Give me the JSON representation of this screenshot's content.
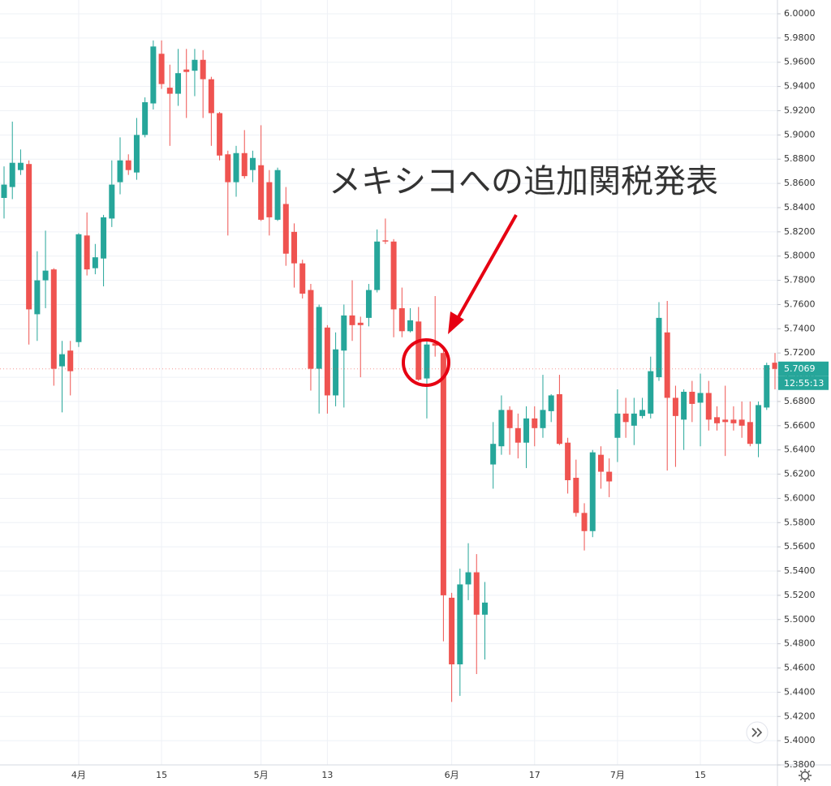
{
  "chart_data": {
    "type": "candlestick",
    "annotation": "メキシコへの追加関税発表",
    "annotation_color": "#e60012",
    "up_color": "#26a69a",
    "down_color": "#ef5350",
    "grid": true,
    "ylim": [
      5.38,
      6.0
    ],
    "yticks": [
      {
        "value": 5.38,
        "label": "5.3800"
      },
      {
        "value": 5.4,
        "label": "5.4000"
      },
      {
        "value": 5.42,
        "label": "5.4200"
      },
      {
        "value": 5.44,
        "label": "5.4400"
      },
      {
        "value": 5.46,
        "label": "5.4600"
      },
      {
        "value": 5.48,
        "label": "5.4800"
      },
      {
        "value": 5.5,
        "label": "5.5000"
      },
      {
        "value": 5.52,
        "label": "5.5200"
      },
      {
        "value": 5.54,
        "label": "5.5400"
      },
      {
        "value": 5.56,
        "label": "5.5600"
      },
      {
        "value": 5.58,
        "label": "5.5800"
      },
      {
        "value": 5.6,
        "label": "5.6000"
      },
      {
        "value": 5.62,
        "label": "5.6200"
      },
      {
        "value": 5.64,
        "label": "5.6400"
      },
      {
        "value": 5.66,
        "label": "5.6600"
      },
      {
        "value": 5.68,
        "label": "5.6800"
      },
      {
        "value": 5.7,
        "label": "5.7000"
      },
      {
        "value": 5.72,
        "label": "5.7200"
      },
      {
        "value": 5.74,
        "label": "5.7400"
      },
      {
        "value": 5.76,
        "label": "5.7600"
      },
      {
        "value": 5.78,
        "label": "5.7800"
      },
      {
        "value": 5.8,
        "label": "5.8000"
      },
      {
        "value": 5.82,
        "label": "5.8200"
      },
      {
        "value": 5.84,
        "label": "5.8400"
      },
      {
        "value": 5.86,
        "label": "5.8600"
      },
      {
        "value": 5.88,
        "label": "5.8800"
      },
      {
        "value": 5.9,
        "label": "5.9000"
      },
      {
        "value": 5.92,
        "label": "5.9200"
      },
      {
        "value": 5.94,
        "label": "5.9400"
      },
      {
        "value": 5.96,
        "label": "5.9600"
      },
      {
        "value": 5.98,
        "label": "5.9800"
      },
      {
        "value": 6.0,
        "label": "6.0000"
      }
    ],
    "last_price": 5.7069,
    "countdown": "12:55:13",
    "categories": [
      null,
      null,
      null,
      null,
      null,
      null,
      null,
      null,
      null,
      "4月",
      null,
      null,
      null,
      null,
      null,
      null,
      null,
      null,
      null,
      "15",
      null,
      null,
      null,
      null,
      null,
      null,
      null,
      null,
      null,
      null,
      null,
      "5月",
      null,
      null,
      null,
      null,
      null,
      null,
      null,
      "13",
      null,
      null,
      null,
      null,
      null,
      null,
      null,
      null,
      null,
      null,
      null,
      null,
      null,
      null,
      "6月",
      null,
      null,
      null,
      null,
      null,
      null,
      null,
      null,
      null,
      "17",
      null,
      null,
      null,
      null,
      null,
      null,
      null,
      null,
      null,
      "7月",
      null,
      null,
      null,
      null,
      null,
      null,
      null,
      null,
      null,
      "15",
      null,
      null,
      null,
      null,
      null,
      null,
      null,
      null,
      null
    ],
    "open": [
      5.848,
      5.857,
      5.871,
      5.876,
      5.752,
      5.78,
      5.789,
      5.709,
      5.722,
      5.729,
      5.817,
      5.79,
      5.798,
      5.831,
      5.861,
      5.879,
      5.869,
      5.9,
      5.926,
      5.967,
      5.939,
      5.934,
      5.954,
      5.953,
      5.962,
      5.946,
      5.918,
      5.884,
      5.861,
      5.885,
      5.871,
      5.875,
      5.861,
      5.83,
      5.843,
      5.82,
      5.794,
      5.772,
      5.707,
      5.741,
      5.685,
      5.722,
      5.751,
      5.745,
      5.749,
      5.772,
      5.813,
      5.812,
      5.757,
      5.738,
      5.746,
      5.699,
      5.728,
      5.72,
      5.518,
      5.463,
      5.529,
      5.539,
      5.504,
      5.628,
      5.643,
      5.673,
      5.658,
      5.646,
      5.666,
      5.658,
      5.672,
      5.686,
      5.646,
      5.617,
      5.588,
      5.573,
      5.636,
      5.622,
      5.65,
      5.67,
      5.66,
      5.668,
      5.67,
      5.7,
      5.737,
      5.683,
      5.665,
      5.688,
      5.679,
      5.687,
      5.667,
      5.665,
      5.665,
      5.665,
      5.663,
      5.645,
      5.675,
      5.712
    ],
    "high": [
      5.874,
      5.911,
      5.888,
      5.879,
      5.804,
      5.821,
      5.79,
      5.73,
      5.73,
      5.819,
      5.836,
      5.81,
      5.834,
      5.879,
      5.898,
      5.884,
      5.914,
      5.931,
      5.978,
      5.978,
      5.958,
      5.971,
      5.971,
      5.971,
      5.97,
      5.948,
      5.919,
      5.887,
      5.891,
      5.904,
      5.887,
      5.908,
      5.871,
      5.873,
      5.857,
      5.827,
      5.797,
      5.777,
      5.76,
      5.743,
      5.737,
      5.76,
      5.78,
      5.75,
      5.777,
      5.822,
      5.831,
      5.814,
      5.774,
      5.757,
      5.758,
      5.731,
      5.767,
      5.723,
      5.522,
      5.542,
      5.563,
      5.554,
      5.531,
      5.663,
      5.685,
      5.676,
      5.67,
      5.676,
      5.676,
      5.702,
      5.686,
      5.702,
      5.65,
      5.632,
      5.596,
      5.64,
      5.643,
      5.633,
      5.69,
      5.683,
      5.683,
      5.683,
      5.717,
      5.762,
      5.763,
      5.693,
      5.69,
      5.697,
      5.703,
      5.697,
      5.676,
      5.693,
      5.676,
      5.68,
      5.68,
      5.68,
      5.712,
      5.72
    ],
    "low": [
      5.831,
      5.847,
      5.867,
      5.727,
      5.73,
      5.757,
      5.693,
      5.671,
      5.685,
      5.725,
      5.784,
      5.785,
      5.775,
      5.824,
      5.851,
      5.867,
      5.863,
      5.898,
      5.921,
      5.938,
      5.891,
      5.924,
      5.914,
      5.932,
      5.914,
      5.891,
      5.879,
      5.817,
      5.849,
      5.864,
      5.861,
      5.829,
      5.817,
      5.829,
      5.792,
      5.774,
      5.765,
      5.689,
      5.67,
      5.67,
      5.676,
      5.675,
      5.73,
      5.7,
      5.742,
      5.77,
      5.81,
      5.733,
      5.733,
      5.737,
      5.697,
      5.666,
      5.717,
      5.482,
      5.432,
      5.437,
      5.516,
      5.455,
      5.467,
      5.608,
      5.636,
      5.636,
      5.633,
      5.625,
      5.643,
      5.65,
      5.663,
      5.644,
      5.604,
      5.585,
      5.557,
      5.568,
      5.608,
      5.601,
      5.63,
      5.65,
      5.644,
      5.666,
      5.666,
      5.697,
      5.623,
      5.626,
      5.64,
      5.663,
      5.643,
      5.656,
      5.656,
      5.635,
      5.656,
      5.65,
      5.643,
      5.634,
      5.673,
      5.69
    ],
    "close": [
      5.859,
      5.877,
      5.877,
      5.756,
      5.78,
      5.788,
      5.707,
      5.719,
      5.705,
      5.818,
      5.789,
      5.799,
      5.832,
      5.859,
      5.879,
      5.871,
      5.9,
      5.927,
      5.973,
      5.942,
      5.934,
      5.951,
      5.952,
      5.962,
      5.946,
      5.918,
      5.883,
      5.861,
      5.885,
      5.866,
      5.881,
      5.83,
      5.832,
      5.871,
      5.802,
      5.794,
      5.769,
      5.707,
      5.758,
      5.685,
      5.723,
      5.751,
      5.743,
      5.743,
      5.772,
      5.812,
      5.812,
      5.756,
      5.738,
      5.747,
      5.698,
      5.727,
      5.726,
      5.52,
      5.463,
      5.529,
      5.539,
      5.504,
      5.514,
      5.645,
      5.673,
      5.658,
      5.646,
      5.666,
      5.658,
      5.673,
      5.685,
      5.645,
      5.615,
      5.588,
      5.573,
      5.638,
      5.622,
      5.614,
      5.67,
      5.663,
      5.67,
      5.673,
      5.705,
      5.749,
      5.683,
      5.668,
      5.688,
      5.678,
      5.687,
      5.665,
      5.662,
      5.663,
      5.662,
      5.66,
      5.645,
      5.677,
      5.71,
      5.7069
    ]
  }
}
